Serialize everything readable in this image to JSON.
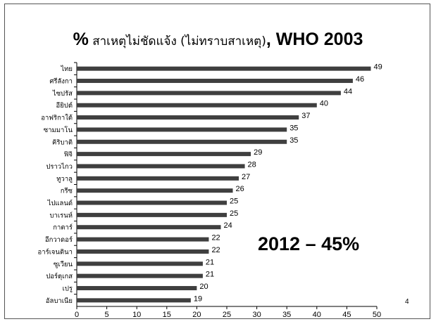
{
  "slide": {
    "title_pct": "%",
    "title_thai": " สาเหตุไม่ชัดแจ้ง (ไม่ทราบสาเหตุ)",
    "title_who": ", WHO 2003",
    "annotation": "2012 – 45%",
    "page_number": "4"
  },
  "chart_data": {
    "type": "bar",
    "orientation": "horizontal",
    "title": "% สาเหตุไม่ชัดแจ้ง (ไม่ทราบสาเหตุ), WHO 2003",
    "categories": [
      "ไทย",
      "ศรีลังกา",
      "ไซปรัส",
      "อียิปต์",
      "อาฟริกาใต้",
      "ซามมาโน",
      "คิริบาติ",
      "ฟิจิ",
      "ปราวไกว",
      "ทูวาลู",
      "กรีซ",
      "ไปแลนด์",
      "บาเรนห์",
      "กาตาร์",
      "อีกวาดอร์",
      "อาร์เจนตินา",
      "ซูเวียน",
      "ปอร์ตุเกส",
      "เปรู",
      "อัลบาเนีย"
    ],
    "values": [
      49,
      46,
      44,
      40,
      37,
      35,
      35,
      29,
      28,
      27,
      26,
      25,
      25,
      24,
      22,
      22,
      21,
      21,
      20,
      19
    ],
    "xlim": [
      0,
      50
    ],
    "xticks": [
      0,
      5,
      10,
      15,
      20,
      25,
      30,
      35,
      40,
      45,
      50
    ],
    "bar_color": "#3f3f3f",
    "data_labels": true,
    "grid": false
  }
}
